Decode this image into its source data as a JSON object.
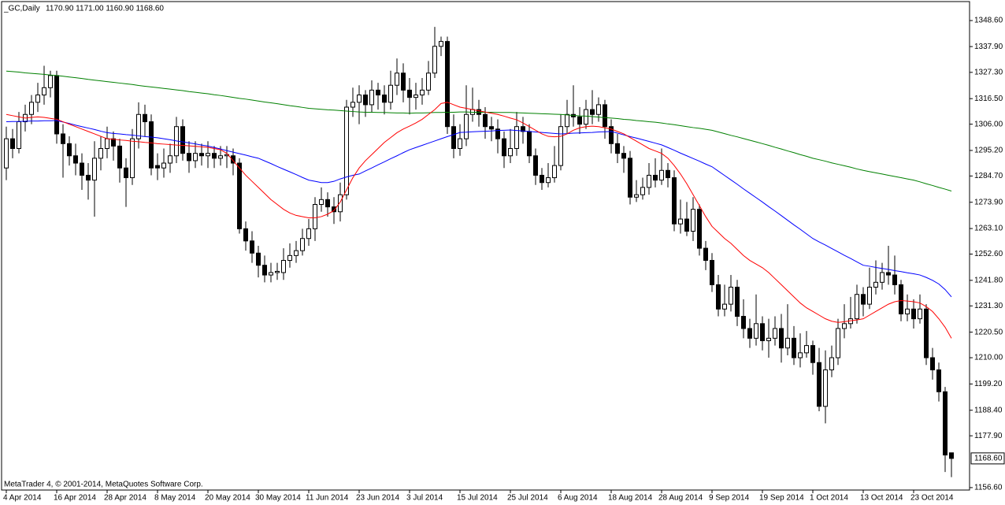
{
  "chart_data": {
    "type": "candlestick",
    "symbol": "_GC,Daily",
    "ohlc_text": "1170.90 1171.00 1160.90 1168.60",
    "footer": "MetaTrader 4, © 2001-2014, MetaQuotes Software Corp.",
    "up_color": "#ffffff",
    "down_color": "#000000",
    "outline_color": "#000000",
    "ylim": [
      1155.6,
      1356.4
    ],
    "yticks": [
      {
        "value": 1348.6,
        "label": "1348.60"
      },
      {
        "value": 1337.9,
        "label": "1337.90"
      },
      {
        "value": 1327.3,
        "label": "1327.30"
      },
      {
        "value": 1316.5,
        "label": "1316.50"
      },
      {
        "value": 1306,
        "label": "1306.00"
      },
      {
        "value": 1295.2,
        "label": "1295.20"
      },
      {
        "value": 1284.7,
        "label": "1284.70"
      },
      {
        "value": 1273.9,
        "label": "1273.90"
      },
      {
        "value": 1263.1,
        "label": "1263.10"
      },
      {
        "value": 1252.6,
        "label": "1252.60"
      },
      {
        "value": 1241.8,
        "label": "1241.80"
      },
      {
        "value": 1231.3,
        "label": "1231.30"
      },
      {
        "value": 1220.5,
        "label": "1220.50"
      },
      {
        "value": 1210,
        "label": "1210.00"
      },
      {
        "value": 1199.2,
        "label": "1199.20"
      },
      {
        "value": 1188.4,
        "label": "1188.40"
      },
      {
        "value": 1177.9,
        "label": "1177.90"
      },
      {
        "value": 1156.6,
        "label": "1156.60"
      }
    ],
    "last_price": {
      "value": 1168.6,
      "label": "1168.60"
    },
    "categories": [
      "4 Apr 2014",
      null,
      null,
      null,
      null,
      null,
      null,
      null,
      "16 Apr 2014",
      null,
      null,
      null,
      null,
      null,
      null,
      null,
      "28 Apr 2014",
      null,
      null,
      null,
      null,
      null,
      null,
      null,
      "8 May 2014",
      null,
      null,
      null,
      null,
      null,
      null,
      null,
      "20 May 2014",
      null,
      null,
      null,
      null,
      null,
      null,
      null,
      "30 May 2014",
      null,
      null,
      null,
      null,
      null,
      null,
      null,
      "11 Jun 2014",
      null,
      null,
      null,
      null,
      null,
      null,
      null,
      "23 Jun 2014",
      null,
      null,
      null,
      null,
      null,
      null,
      null,
      "3 Jul 2014",
      null,
      null,
      null,
      null,
      null,
      null,
      null,
      "15 Jul 2014",
      null,
      null,
      null,
      null,
      null,
      null,
      null,
      "25 Jul 2014",
      null,
      null,
      null,
      null,
      null,
      null,
      null,
      "6 Aug 2014",
      null,
      null,
      null,
      null,
      null,
      null,
      null,
      "18 Aug 2014",
      null,
      null,
      null,
      null,
      null,
      null,
      null,
      "28 Aug 2014",
      null,
      null,
      null,
      null,
      null,
      null,
      null,
      "9 Sep 2014",
      null,
      null,
      null,
      null,
      null,
      null,
      null,
      "19 Sep 2014",
      null,
      null,
      null,
      null,
      null,
      null,
      null,
      "1 Oct 2014",
      null,
      null,
      null,
      null,
      null,
      null,
      null,
      "13 Oct 2014",
      null,
      null,
      null,
      null,
      null,
      null,
      null,
      "23 Oct 2014",
      null,
      null,
      null,
      null,
      null,
      null
    ],
    "open": [
      1288,
      1300,
      1296,
      1307,
      1310,
      1315,
      1318,
      1321,
      1326,
      1302,
      1298,
      1293,
      1290,
      1285,
      1283,
      1292,
      1296,
      1300,
      1297,
      1288,
      1284,
      1300,
      1310,
      1307,
      1289,
      1288,
      1290,
      1293,
      1305,
      1294,
      1291,
      1294,
      1293,
      1294,
      1292,
      1293,
      1293,
      1290,
      1263,
      1258,
      1253,
      1248,
      1244,
      1245,
      1245,
      1250,
      1252,
      1254,
      1259,
      1263,
      1273,
      1275,
      1272,
      1270,
      1277,
      1313,
      1315,
      1318,
      1314,
      1320,
      1318,
      1315,
      1322,
      1327,
      1320,
      1317,
      1318,
      1320,
      1327,
      1338,
      1340,
      1305,
      1296,
      1300,
      1310,
      1312,
      1310,
      1305,
      1304,
      1300,
      1293,
      1296,
      1305,
      1303,
      1293,
      1285,
      1282,
      1284,
      1289,
      1305,
      1310,
      1309,
      1306,
      1312,
      1310,
      1314,
      1305,
      1298,
      1294,
      1292,
      1276,
      1277,
      1280,
      1285,
      1283,
      1287,
      1284,
      1265,
      1267,
      1262,
      1271,
      1255,
      1250,
      1240,
      1230,
      1232,
      1239,
      1227,
      1222,
      1218,
      1224,
      1217,
      1218,
      1222,
      1214,
      1218,
      1210,
      1212,
      1215,
      1208,
      1190,
      1205,
      1210,
      1222,
      1224,
      1226,
      1236,
      1232,
      1239,
      1241,
      1245,
      1244,
      1240,
      1228,
      1230,
      1226,
      1230,
      1210,
      1205,
      1196,
      1170.9
    ],
    "high": [
      1305,
      1304,
      1311,
      1314,
      1318,
      1323,
      1330,
      1328,
      1328,
      1306,
      1301,
      1298,
      1294,
      1290,
      1299,
      1301,
      1305,
      1303,
      1300,
      1292,
      1304,
      1315,
      1314,
      1310,
      1294,
      1296,
      1298,
      1309,
      1308,
      1299,
      1299,
      1298,
      1299,
      1297,
      1297,
      1297,
      1296,
      1292,
      1266,
      1262,
      1256,
      1252,
      1249,
      1249,
      1255,
      1257,
      1258,
      1263,
      1267,
      1276,
      1280,
      1278,
      1276,
      1282,
      1316,
      1321,
      1322,
      1320,
      1324,
      1323,
      1322,
      1328,
      1333,
      1331,
      1325,
      1323,
      1325,
      1332,
      1346,
      1342,
      1342,
      1310,
      1306,
      1322,
      1321,
      1316,
      1313,
      1309,
      1308,
      1303,
      1304,
      1311,
      1309,
      1306,
      1296,
      1288,
      1290,
      1297,
      1310,
      1316,
      1322,
      1313,
      1316,
      1320,
      1317,
      1316,
      1308,
      1302,
      1297,
      1295,
      1283,
      1284,
      1290,
      1292,
      1296,
      1290,
      1287,
      1275,
      1274,
      1276,
      1273,
      1258,
      1253,
      1244,
      1240,
      1244,
      1242,
      1234,
      1226,
      1236,
      1227,
      1226,
      1227,
      1228,
      1232,
      1223,
      1220,
      1221,
      1217,
      1214,
      1213,
      1215,
      1226,
      1232,
      1235,
      1240,
      1239,
      1247,
      1250,
      1249,
      1256,
      1252,
      1242,
      1236,
      1234,
      1236,
      1232,
      1214,
      1208,
      1198,
      1171
    ],
    "low": [
      1283,
      1292,
      1294,
      1303,
      1306,
      1311,
      1314,
      1317,
      1298,
      1284,
      1289,
      1285,
      1279,
      1275,
      1268,
      1287,
      1292,
      1291,
      1282,
      1272,
      1281,
      1296,
      1301,
      1285,
      1283,
      1284,
      1286,
      1290,
      1291,
      1286,
      1288,
      1289,
      1288,
      1288,
      1289,
      1288,
      1285,
      1261,
      1254,
      1249,
      1243,
      1241,
      1241,
      1242,
      1242,
      1247,
      1249,
      1252,
      1256,
      1258,
      1270,
      1268,
      1265,
      1266,
      1275,
      1309,
      1306,
      1309,
      1311,
      1312,
      1310,
      1312,
      1318,
      1315,
      1310,
      1312,
      1314,
      1318,
      1325,
      1334,
      1302,
      1292,
      1293,
      1297,
      1307,
      1305,
      1300,
      1299,
      1294,
      1288,
      1290,
      1293,
      1298,
      1290,
      1281,
      1279,
      1280,
      1282,
      1287,
      1302,
      1305,
      1302,
      1304,
      1306,
      1307,
      1300,
      1294,
      1290,
      1286,
      1273,
      1274,
      1275,
      1277,
      1280,
      1281,
      1280,
      1262,
      1261,
      1260,
      1258,
      1252,
      1246,
      1237,
      1227,
      1227,
      1229,
      1223,
      1218,
      1214,
      1215,
      1213,
      1210,
      1215,
      1208,
      1211,
      1207,
      1206,
      1210,
      1203,
      1188,
      1183,
      1202,
      1207,
      1218,
      1222,
      1224,
      1227,
      1230,
      1236,
      1238,
      1240,
      1236,
      1225,
      1225,
      1222,
      1224,
      1207,
      1201,
      1192,
      1163,
      1160.9
    ],
    "close": [
      1300,
      1296,
      1307,
      1310,
      1315,
      1318,
      1321,
      1326,
      1302,
      1298,
      1293,
      1290,
      1285,
      1283,
      1292,
      1296,
      1300,
      1297,
      1288,
      1284,
      1300,
      1310,
      1307,
      1288,
      1288,
      1290,
      1293,
      1305,
      1294,
      1291,
      1294,
      1293,
      1294,
      1292,
      1293,
      1293.5,
      1290,
      1263,
      1258,
      1253,
      1248,
      1244,
      1245,
      1245.5,
      1250,
      1252,
      1254,
      1259,
      1263,
      1273,
      1275,
      1272,
      1270,
      1277,
      1313,
      1315,
      1318,
      1314,
      1320,
      1318,
      1315,
      1322,
      1327,
      1320,
      1317,
      1318,
      1320,
      1327,
      1338,
      1340,
      1305,
      1296,
      1300,
      1310,
      1312,
      1310,
      1305,
      1304,
      1300,
      1293,
      1296,
      1305,
      1303,
      1293,
      1285,
      1282,
      1284,
      1289,
      1305,
      1310,
      1309,
      1306,
      1312,
      1310,
      1314,
      1305,
      1298,
      1294,
      1292,
      1276,
      1277,
      1280,
      1285,
      1283,
      1287,
      1284,
      1265,
      1267,
      1262,
      1271,
      1255,
      1250,
      1240,
      1230,
      1232,
      1239,
      1227,
      1222,
      1218,
      1224,
      1217,
      1218,
      1222,
      1214,
      1218,
      1210,
      1212,
      1215,
      1208,
      1190,
      1205,
      1210,
      1222,
      1224,
      1226,
      1236,
      1232,
      1239,
      1241,
      1245,
      1244,
      1240,
      1228,
      1230,
      1226,
      1230,
      1210,
      1205,
      1196,
      1170,
      1168.6
    ],
    "lines": [
      {
        "color": "#008000",
        "values": [
          1327.8,
          1327.6,
          1327.4,
          1327.1,
          1326.9,
          1326.7,
          1326.5,
          1326.2,
          1326.0,
          1325.7,
          1325.4,
          1325.1,
          1324.8,
          1324.4,
          1324.1,
          1323.8,
          1323.5,
          1323.2,
          1322.9,
          1322.6,
          1322.3,
          1321.9,
          1321.6,
          1321.3,
          1321.0,
          1320.7,
          1320.4,
          1320.1,
          1319.8,
          1319.4,
          1319.1,
          1318.8,
          1318.5,
          1318.1,
          1317.8,
          1317.4,
          1317.0,
          1316.6,
          1316.3,
          1315.9,
          1315.5,
          1315.1,
          1314.8,
          1314.4,
          1314.0,
          1313.6,
          1313.3,
          1312.9,
          1312.5,
          1312.3,
          1312.1,
          1311.9,
          1311.8,
          1311.6,
          1311.4,
          1311.2,
          1311.0,
          1310.9,
          1310.9,
          1310.8,
          1310.8,
          1310.7,
          1310.6,
          1310.6,
          1310.5,
          1310.6,
          1310.6,
          1310.7,
          1310.8,
          1310.8,
          1310.9,
          1310.9,
          1311.0,
          1311.0,
          1310.9,
          1310.9,
          1310.9,
          1310.9,
          1310.8,
          1310.8,
          1310.8,
          1310.7,
          1310.6,
          1310.5,
          1310.4,
          1310.3,
          1310.2,
          1310.1,
          1310.0,
          1309.8,
          1309.6,
          1309.4,
          1309.3,
          1309.1,
          1308.9,
          1308.7,
          1308.5,
          1308.3,
          1308.0,
          1307.8,
          1307.5,
          1307.3,
          1307.0,
          1306.8,
          1306.5,
          1306.1,
          1305.8,
          1305.4,
          1305.0,
          1304.6,
          1304.3,
          1303.9,
          1303.5,
          1302.8,
          1302.1,
          1301.4,
          1300.8,
          1300.1,
          1299.4,
          1298.7,
          1298.0,
          1297.3,
          1296.5,
          1295.8,
          1295.0,
          1294.3,
          1293.5,
          1292.8,
          1292.0,
          1291.4,
          1290.8,
          1290.1,
          1289.5,
          1288.9,
          1288.3,
          1287.6,
          1287.0,
          1286.5,
          1286.0,
          1285.5,
          1285.0,
          1284.5,
          1284.0,
          1283.5,
          1283.0,
          1282.3,
          1281.5,
          1280.8,
          1280.0,
          1279.3,
          1278.5
        ]
      },
      {
        "color": "#0000ff",
        "values": [
          1307.0,
          1307.1,
          1307.1,
          1307.2,
          1307.3,
          1307.3,
          1307.4,
          1307.4,
          1307.5,
          1306.9,
          1306.3,
          1305.6,
          1305.0,
          1304.4,
          1303.8,
          1303.1,
          1302.5,
          1302.2,
          1302.0,
          1301.7,
          1301.5,
          1301.2,
          1300.9,
          1300.7,
          1300.4,
          1300.0,
          1299.6,
          1299.1,
          1298.7,
          1298.3,
          1297.9,
          1297.4,
          1297.0,
          1296.4,
          1295.8,
          1295.1,
          1294.5,
          1293.9,
          1293.3,
          1292.6,
          1292.0,
          1290.9,
          1289.8,
          1288.6,
          1287.5,
          1286.4,
          1285.3,
          1284.1,
          1283.0,
          1282.5,
          1282.0,
          1282.0,
          1282.5,
          1283.5,
          1284.3,
          1285.0,
          1285.5,
          1286.8,
          1288.0,
          1289.3,
          1290.5,
          1291.8,
          1293.0,
          1294.3,
          1295.5,
          1296.4,
          1297.3,
          1298.2,
          1299.1,
          1300.0,
          1300.9,
          1301.7,
          1302.6,
          1302.7,
          1302.9,
          1303.0,
          1303.1,
          1303.2,
          1303.4,
          1303.5,
          1303.6,
          1303.4,
          1303.2,
          1303.0,
          1302.8,
          1302.6,
          1302.4,
          1302.2,
          1302.0,
          1302.1,
          1302.3,
          1302.4,
          1302.5,
          1302.6,
          1302.8,
          1302.9,
          1303.0,
          1302.3,
          1301.6,
          1300.9,
          1300.3,
          1299.6,
          1298.9,
          1298.2,
          1297.5,
          1296.4,
          1295.3,
          1294.1,
          1293.0,
          1291.9,
          1290.8,
          1289.6,
          1288.5,
          1286.7,
          1284.9,
          1283.1,
          1281.3,
          1279.4,
          1277.6,
          1275.8,
          1274.0,
          1272.1,
          1270.3,
          1268.4,
          1266.5,
          1264.6,
          1262.8,
          1260.9,
          1259.0,
          1257.6,
          1256.3,
          1254.9,
          1253.5,
          1252.1,
          1250.8,
          1249.4,
          1248.0,
          1247.6,
          1247.1,
          1246.7,
          1246.3,
          1245.8,
          1245.4,
          1244.9,
          1244.5,
          1244.0,
          1243.0,
          1241.8,
          1240.3,
          1238.0,
          1235.0
        ]
      },
      {
        "color": "#ff0000",
        "values": [
          1310.0,
          1309.5,
          1309.0,
          1308.5,
          1308.8,
          1309.0,
          1308.8,
          1308.4,
          1308.0,
          1307.0,
          1306.0,
          1305.0,
          1304.0,
          1303.0,
          1302.0,
          1301.0,
          1300.0,
          1299.8,
          1299.5,
          1299.3,
          1299.0,
          1298.8,
          1298.5,
          1298.3,
          1298.0,
          1297.8,
          1297.6,
          1297.4,
          1297.3,
          1297.1,
          1296.9,
          1296.7,
          1296.5,
          1296.0,
          1295.5,
          1294.0,
          1291.0,
          1288.0,
          1285.0,
          1282.5,
          1280.0,
          1277.5,
          1275.0,
          1273.0,
          1271.0,
          1269.5,
          1268.5,
          1268.0,
          1267.5,
          1267.5,
          1268.0,
          1269.0,
          1270.5,
          1274.0,
          1279.0,
          1284.0,
          1288.0,
          1291.0,
          1293.5,
          1296.0,
          1298.5,
          1300.5,
          1302.5,
          1304.0,
          1305.2,
          1306.5,
          1308.0,
          1310.0,
          1312.0,
          1314.5,
          1315.0,
          1314.0,
          1313.0,
          1312.5,
          1312.0,
          1311.5,
          1311.0,
          1310.5,
          1310.0,
          1309.3,
          1308.5,
          1307.8,
          1306.5,
          1305.0,
          1303.5,
          1302.0,
          1301.0,
          1300.8,
          1301.0,
          1302.0,
          1303.5,
          1304.5,
          1305.0,
          1305.2,
          1305.0,
          1304.5,
          1304.0,
          1303.0,
          1302.0,
          1300.5,
          1299.0,
          1297.5,
          1296.0,
          1295.0,
          1294.0,
          1292.0,
          1289.0,
          1285.5,
          1281.5,
          1277.0,
          1272.5,
          1268.0,
          1264.0,
          1261.5,
          1259.0,
          1257.0,
          1254.5,
          1252.0,
          1250.0,
          1248.5,
          1247.0,
          1245.0,
          1242.5,
          1240.0,
          1237.5,
          1235.0,
          1232.5,
          1230.5,
          1229.0,
          1227.5,
          1226.0,
          1225.0,
          1224.5,
          1224.8,
          1225.2,
          1225.5,
          1226.0,
          1227.5,
          1229.0,
          1230.5,
          1232.0,
          1233.0,
          1233.5,
          1233.3,
          1233.0,
          1232.5,
          1231.0,
          1229.0,
          1226.0,
          1222.5,
          1218.0
        ]
      }
    ]
  }
}
